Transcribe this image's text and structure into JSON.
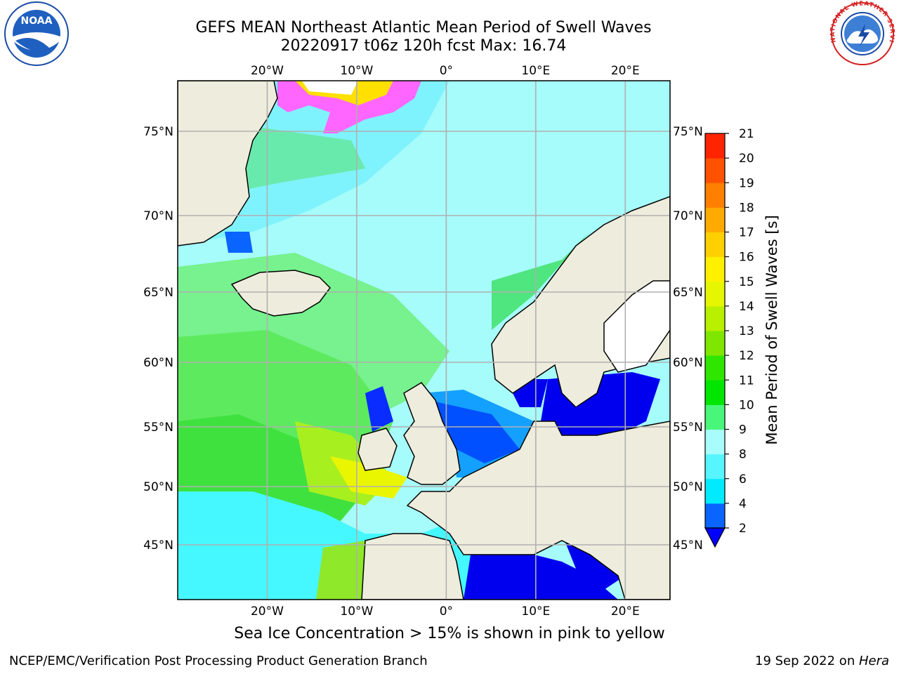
{
  "title": {
    "line1": "GEFS MEAN Northeast Atlantic Mean Period of Swell Waves",
    "line2": "20220917 t06z 120h fcst   Max: 16.74"
  },
  "caption": "Sea Ice Concentration > 15% is shown in pink to yellow",
  "footer": {
    "left": "NCEP/EMC/Verification Post Processing Product Generation Branch",
    "right_date": "19 Sep 2022 on ",
    "right_host": "Hera"
  },
  "logos": {
    "left": {
      "icon": "noaa-logo-icon",
      "text": "NOAA"
    },
    "right": {
      "icon": "nws-logo-icon",
      "text": "NATIONAL WEATHER SERVICE"
    }
  },
  "map": {
    "lon_range": [
      -30,
      25
    ],
    "lat_range": [
      41,
      78
    ],
    "lon_ticks": [
      {
        "value": -20,
        "label": "20°W"
      },
      {
        "value": -10,
        "label": "10°W"
      },
      {
        "value": 0,
        "label": "0°"
      },
      {
        "value": 10,
        "label": "10°E"
      },
      {
        "value": 20,
        "label": "20°E"
      }
    ],
    "lat_ticks": [
      {
        "value": 45,
        "label": "45°N"
      },
      {
        "value": 50,
        "label": "50°N"
      },
      {
        "value": 55,
        "label": "55°N"
      },
      {
        "value": 60,
        "label": "60°N"
      },
      {
        "value": 65,
        "label": "65°N"
      },
      {
        "value": 70,
        "label": "70°N"
      },
      {
        "value": 75,
        "label": "75°N"
      }
    ],
    "colors": {
      "land": "#eeecdc",
      "grid": "#b0b0b0",
      "ice": "#ffffff"
    }
  },
  "colorbar": {
    "label": "Mean Period of Swell Waves [s]",
    "extend": "min",
    "extend_color": "#0000ff",
    "ticks": [
      "2",
      "4",
      "6",
      "8",
      "9",
      "10",
      "11",
      "12",
      "13",
      "14",
      "15",
      "16",
      "17",
      "18",
      "19",
      "20",
      "21"
    ],
    "colors": [
      "#0a64ff",
      "#00ebff",
      "#57f5ff",
      "#a8fcfc",
      "#48f77a",
      "#00e600",
      "#2ee600",
      "#7fe600",
      "#b9f000",
      "#e6f500",
      "#fff000",
      "#ffd000",
      "#ffaa00",
      "#ff8000",
      "#ff5200",
      "#ff2400"
    ]
  }
}
